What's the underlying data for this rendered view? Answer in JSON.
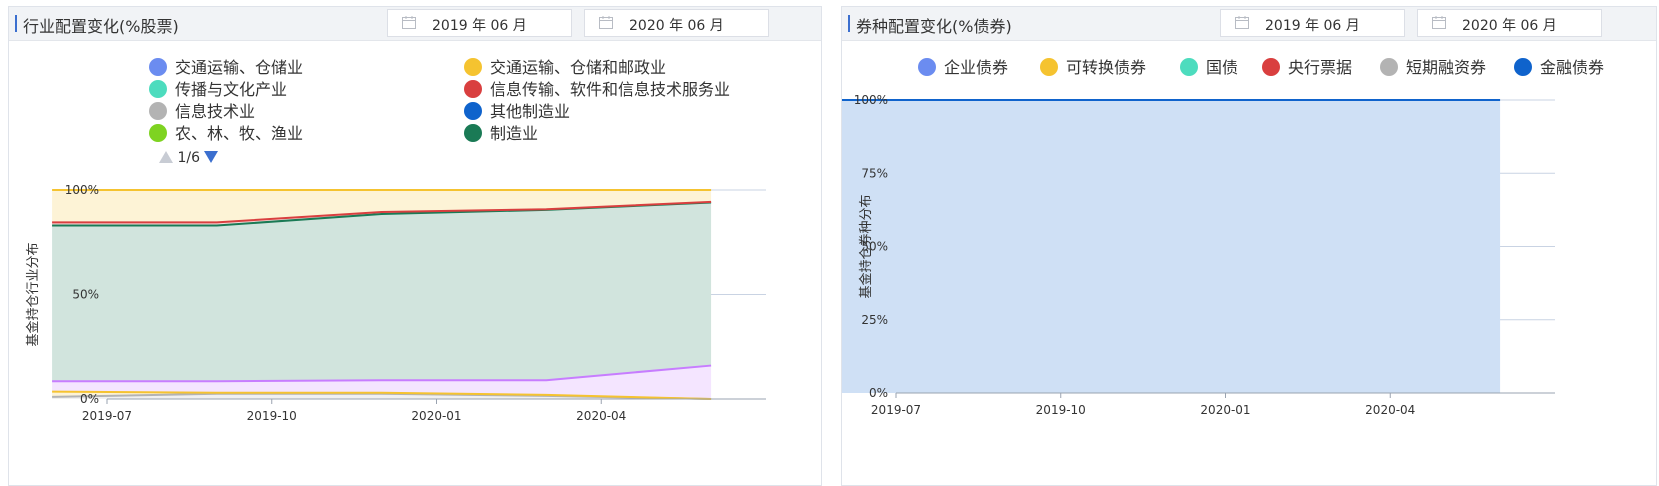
{
  "left_panel": {
    "title": "行业配置变化(%股票)",
    "start_date": "2019 年 06 月",
    "end_date": "2020 年 06 月",
    "legend": [
      {
        "label": "交通运输、仓储业",
        "color": "#6b8cf0"
      },
      {
        "label": "交通运输、仓储和邮政业",
        "color": "#f5c330"
      },
      {
        "label": "传播与文化产业",
        "color": "#4ddcbe"
      },
      {
        "label": "信息传输、软件和信息技术服务业",
        "color": "#d93f3f"
      },
      {
        "label": "信息技术业",
        "color": "#b3b3b3"
      },
      {
        "label": "其他制造业",
        "color": "#0f63cc"
      },
      {
        "label": "农、林、牧、渔业",
        "color": "#7ed321"
      },
      {
        "label": "制造业",
        "color": "#1a7a55"
      }
    ],
    "pager": "1/6"
  },
  "right_panel": {
    "title": "券种配置变化(%债券)",
    "start_date": "2019 年 06 月",
    "end_date": "2020 年 06 月",
    "legend": [
      {
        "label": "企业债券",
        "color": "#6b8cf0"
      },
      {
        "label": "可转换债券",
        "color": "#f5c330"
      },
      {
        "label": "国债",
        "color": "#4ddcbe"
      },
      {
        "label": "央行票据",
        "color": "#d93f3f"
      },
      {
        "label": "短期融资券",
        "color": "#b3b3b3"
      },
      {
        "label": "金融债券",
        "color": "#0f63cc"
      }
    ]
  },
  "chart_data": [
    {
      "type": "area",
      "stacked": true,
      "ylabel": "基金持仓行业分布",
      "ylim": [
        0,
        100
      ],
      "yticks": [
        "0%",
        "50%",
        "100%"
      ],
      "x": [
        "2019-06",
        "2019-09",
        "2019-12",
        "2020-03",
        "2020-06"
      ],
      "xticks": [
        "2019-07",
        "2019-10",
        "2020-01",
        "2020-04"
      ],
      "series": [
        {
          "color": "#b3b3b3",
          "values": [
            1.0,
            2.5,
            2.5,
            1.5,
            0.0
          ]
        },
        {
          "color": "#f5c330",
          "values": [
            2.5,
            0.5,
            0.5,
            0.5,
            0.0
          ]
        },
        {
          "color": "#c77dff",
          "values": [
            5.0,
            5.5,
            6.0,
            7.0,
            16.0
          ]
        },
        {
          "color": "#1a7a55",
          "values": [
            74.5,
            74.5,
            79.5,
            81.5,
            78.0
          ]
        },
        {
          "color": "#d93f3f",
          "values": [
            1.5,
            1.5,
            1.0,
            0.3,
            0.3
          ]
        },
        {
          "color": "#f5c330",
          "values": [
            15.5,
            15.5,
            10.5,
            9.2,
            5.7
          ]
        }
      ]
    },
    {
      "type": "area",
      "stacked": true,
      "ylabel": "基金持仓券种分布",
      "ylim": [
        0,
        100
      ],
      "yticks": [
        "0%",
        "25%",
        "50%",
        "75%",
        "100%"
      ],
      "x": [
        "2019-06",
        "2019-09",
        "2019-12",
        "2020-03",
        "2020-06"
      ],
      "xticks": [
        "2019-07",
        "2019-10",
        "2020-01",
        "2020-04"
      ],
      "series": [
        {
          "name": "金融债券",
          "color": "#0f63cc",
          "values": [
            100,
            100,
            100,
            100,
            100
          ]
        }
      ]
    }
  ]
}
